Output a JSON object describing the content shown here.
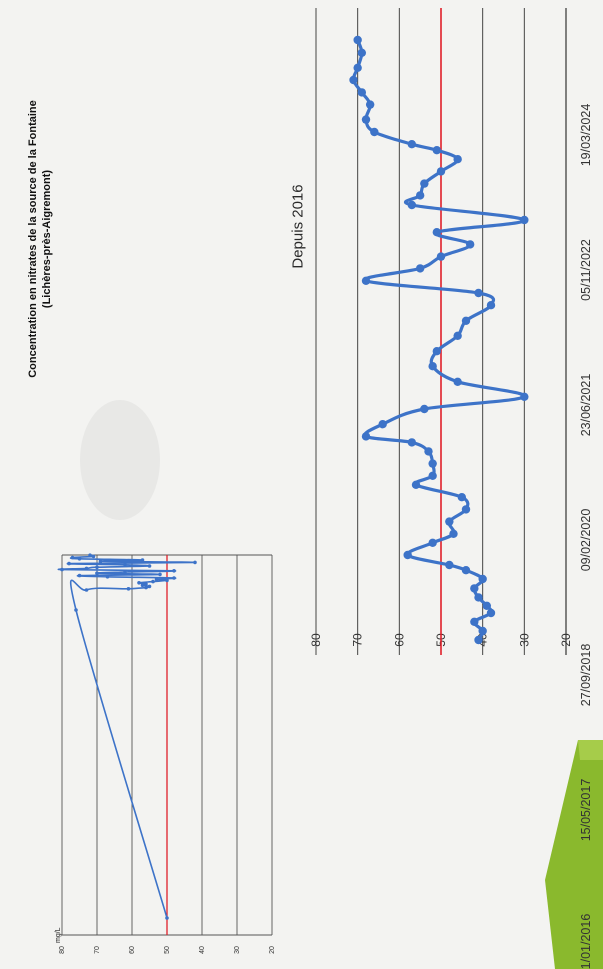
{
  "chart_data": [
    {
      "type": "line",
      "title": "Concentration en nitrates de la source de la Fontaine (Lichères-près-Aigremont)",
      "ylabel": "mg/L",
      "yticks": [
        80,
        70,
        60,
        50,
        40,
        30,
        20
      ],
      "ylim": [
        20,
        80
      ],
      "reference_line": 50,
      "grid": true,
      "orientation": "rotated-90-ccw",
      "series": [
        {
          "color": "#3d73c8",
          "values": [
            50,
            76,
            73,
            61,
            56,
            55,
            57,
            56,
            58,
            54,
            50,
            53,
            48,
            67,
            75,
            52,
            70,
            62,
            48,
            80,
            73,
            70,
            55,
            62,
            78,
            42,
            69,
            57,
            75,
            77,
            71,
            72
          ]
        }
      ]
    },
    {
      "type": "line",
      "title": "Depuis 2016",
      "x": [
        "2016-01-01",
        "2016-02-15",
        "2016-04-01",
        "2016-05-15",
        "2016-06-20",
        "2016-08-01",
        "2016-09-15",
        "2016-11-01",
        "2016-12-15",
        "2017-01-10",
        "2017-03-01",
        "2017-05-01",
        "2017-06-15",
        "2017-08-15",
        "2017-10-15",
        "2017-12-15",
        "2018-02-15",
        "2018-04-01",
        "2018-06-01",
        "2018-08-01",
        "2018-09-15",
        "2018-10-15",
        "2018-12-15",
        "2019-03-01",
        "2019-05-01",
        "2019-07-15",
        "2019-10-01",
        "2019-12-15",
        "2020-03-01",
        "2020-05-15",
        "2020-08-01",
        "2020-10-01",
        "2020-12-01",
        "2021-02-01",
        "2021-04-01",
        "2021-06-01",
        "2021-08-01",
        "2021-10-01",
        "2021-12-15",
        "2022-02-01",
        "2022-04-01",
        "2022-06-01",
        "2022-08-01",
        "2022-09-15",
        "2022-10-15",
        "2022-12-15",
        "2023-02-15",
        "2023-05-01",
        "2023-07-01",
        "2023-09-01",
        "2023-11-01",
        "2024-01-15",
        "2024-03-19"
      ],
      "xticks": [
        "01/01/2016",
        "15/05/2017",
        "27/09/2018",
        "09/02/2020",
        "23/06/2021",
        "05/11/2022",
        "19/03/2024"
      ],
      "yticks": [
        80,
        70,
        60,
        50,
        40,
        30,
        20
      ],
      "ylim": [
        20,
        80
      ],
      "reference_line": 50,
      "grid": true,
      "orientation": "rotated-90-ccw",
      "series": [
        {
          "color": "#3d73c8",
          "values": [
            41,
            40,
            42,
            38,
            39,
            41,
            42,
            40,
            44,
            48,
            58,
            52,
            47,
            48,
            44,
            45,
            56,
            52,
            52,
            53,
            57,
            68,
            64,
            54,
            30,
            46,
            52,
            51,
            46,
            44,
            38,
            41,
            68,
            55,
            50,
            43,
            51,
            30,
            57,
            55,
            54,
            50,
            46,
            51,
            57,
            66,
            68,
            67,
            69,
            71,
            70,
            69,
            70
          ]
        }
      ]
    }
  ]
}
